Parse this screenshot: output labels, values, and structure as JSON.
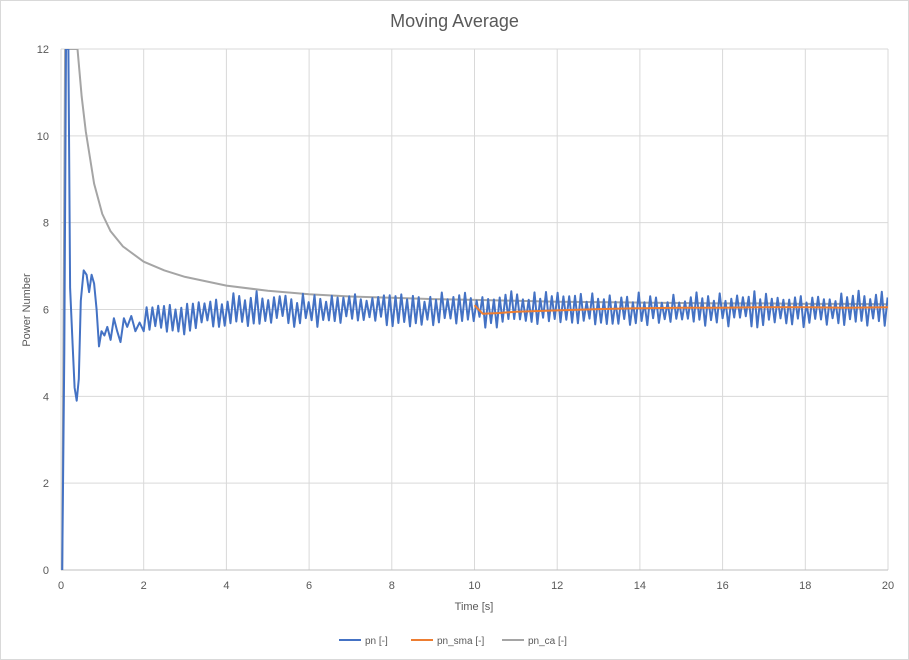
{
  "chart_data": {
    "type": "line",
    "title": "Moving Average",
    "xlabel": "Time [s]",
    "ylabel": "Power Number",
    "xlim": [
      0,
      20
    ],
    "ylim": [
      0,
      12
    ],
    "x_ticks": [
      "0",
      "2",
      "4",
      "6",
      "8",
      "10",
      "12",
      "14",
      "16",
      "18",
      "20"
    ],
    "y_ticks": [
      "0",
      "2",
      "4",
      "6",
      "8",
      "10",
      "12"
    ],
    "grid": true,
    "legend_position": "bottom",
    "series": [
      {
        "name": "pn [-]",
        "color": "#4472c4",
        "description": "oscillating signal around 6",
        "points": [
          [
            0.03,
            0
          ],
          [
            0.08,
            5
          ],
          [
            0.12,
            12
          ],
          [
            0.18,
            12
          ],
          [
            0.22,
            6.5
          ],
          [
            0.28,
            5.2
          ],
          [
            0.33,
            4.2
          ],
          [
            0.38,
            3.9
          ],
          [
            0.43,
            4.4
          ],
          [
            0.48,
            6.2
          ],
          [
            0.55,
            6.9
          ],
          [
            0.62,
            6.8
          ],
          [
            0.68,
            6.4
          ],
          [
            0.74,
            6.8
          ],
          [
            0.8,
            6.6
          ],
          [
            0.86,
            6.0
          ],
          [
            0.92,
            5.15
          ],
          [
            0.98,
            5.5
          ],
          [
            1.05,
            5.4
          ],
          [
            1.12,
            5.6
          ],
          [
            1.2,
            5.3
          ],
          [
            1.28,
            5.8
          ],
          [
            1.36,
            5.5
          ],
          [
            1.44,
            5.25
          ],
          [
            1.52,
            5.8
          ],
          [
            1.6,
            5.6
          ],
          [
            1.7,
            5.85
          ],
          [
            1.8,
            5.5
          ],
          [
            1.9,
            5.7
          ],
          [
            2.0,
            5.5
          ]
        ]
      },
      {
        "name": "pn_sma [-]",
        "color": "#ed7d31",
        "points": [
          [
            10.0,
            6.1
          ],
          [
            10.2,
            5.9
          ],
          [
            10.6,
            5.92
          ],
          [
            11.0,
            5.95
          ],
          [
            12.0,
            5.98
          ],
          [
            13.0,
            6.01
          ],
          [
            14.0,
            6.03
          ],
          [
            15.0,
            6.04
          ],
          [
            16.0,
            6.04
          ],
          [
            17.0,
            6.05
          ],
          [
            18.0,
            6.05
          ],
          [
            19.0,
            6.04
          ],
          [
            20.0,
            6.05
          ]
        ]
      },
      {
        "name": "pn_ca [-]",
        "color": "#a5a5a5",
        "description": "cumulative average decaying toward 6.1",
        "points": [
          [
            0.03,
            0
          ],
          [
            0.1,
            12
          ],
          [
            0.2,
            12
          ],
          [
            0.4,
            12
          ],
          [
            0.5,
            10.9
          ],
          [
            0.6,
            10.1
          ],
          [
            0.8,
            8.9
          ],
          [
            1.0,
            8.2
          ],
          [
            1.2,
            7.8
          ],
          [
            1.5,
            7.45
          ],
          [
            2.0,
            7.1
          ],
          [
            2.5,
            6.9
          ],
          [
            3.0,
            6.75
          ],
          [
            4.0,
            6.55
          ],
          [
            5.0,
            6.43
          ],
          [
            6.0,
            6.35
          ],
          [
            7.0,
            6.3
          ],
          [
            8.0,
            6.27
          ],
          [
            9.0,
            6.24
          ],
          [
            10.0,
            6.22
          ],
          [
            11.0,
            6.2
          ],
          [
            12.0,
            6.18
          ],
          [
            13.0,
            6.17
          ],
          [
            14.0,
            6.16
          ],
          [
            15.0,
            6.15
          ],
          [
            16.0,
            6.14
          ],
          [
            17.0,
            6.14
          ],
          [
            18.0,
            6.13
          ],
          [
            19.0,
            6.13
          ],
          [
            20.0,
            6.12
          ]
        ]
      }
    ]
  }
}
